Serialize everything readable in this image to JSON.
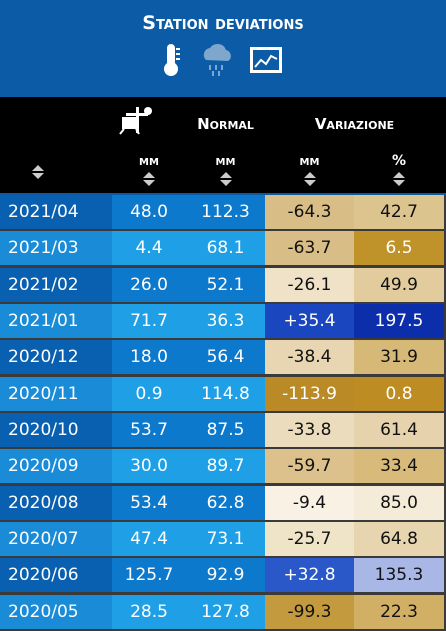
{
  "header": {
    "title": "Station deviations"
  },
  "table": {
    "columns": [
      "Normal",
      "Variazione"
    ],
    "units": [
      "mm",
      "mm",
      "mm",
      "%"
    ],
    "rows": [
      {
        "cells": [
          "2021/04",
          "48.0",
          "112.3",
          "-64.3",
          "42.7"
        ],
        "colors": [
          "#d9bd86",
          "#dcc48f"
        ]
      },
      {
        "cells": [
          "2021/03",
          "4.4",
          "68.1",
          "-63.7",
          "6.5"
        ],
        "colors": [
          "#d9bd86",
          "#c0922a"
        ]
      },
      {
        "cells": [
          "2021/02",
          "26.0",
          "52.1",
          "-26.1",
          "49.9"
        ],
        "colors": [
          "#efe2c6",
          "#e2cc9e"
        ]
      },
      {
        "cells": [
          "2021/01",
          "71.7",
          "36.3",
          "+35.4",
          "197.5"
        ],
        "colors": [
          "#1a47c0",
          "#0c2eab"
        ]
      },
      {
        "cells": [
          "2020/12",
          "18.0",
          "56.4",
          "-38.4",
          "31.9"
        ],
        "colors": [
          "#e8d6b2",
          "#d7b977"
        ]
      },
      {
        "cells": [
          "2020/11",
          "0.9",
          "114.8",
          "-113.9",
          "0.8"
        ],
        "colors": [
          "#b98a25",
          "#bd8d24"
        ]
      },
      {
        "cells": [
          "2020/10",
          "53.7",
          "87.5",
          "-33.8",
          "61.4"
        ],
        "colors": [
          "#eadcbc",
          "#e6d3ad"
        ]
      },
      {
        "cells": [
          "2020/09",
          "30.0",
          "89.7",
          "-59.7",
          "33.4"
        ],
        "colors": [
          "#dcc18c",
          "#d8bb7a"
        ]
      },
      {
        "cells": [
          "2020/08",
          "53.4",
          "62.8",
          "-9.4",
          "85.0"
        ],
        "colors": [
          "#f8f1e4",
          "#f4ebd8"
        ]
      },
      {
        "cells": [
          "2020/07",
          "47.4",
          "73.1",
          "-25.7",
          "64.8"
        ],
        "colors": [
          "#efe3c8",
          "#e7d5b0"
        ]
      },
      {
        "cells": [
          "2020/06",
          "125.7",
          "92.9",
          "+32.8",
          "135.3"
        ],
        "colors": [
          "#2a58c8",
          "#a9b7e6"
        ]
      },
      {
        "cells": [
          "2020/05",
          "28.5",
          "127.8",
          "-99.3",
          "22.3"
        ],
        "colors": [
          "#c49a3e",
          "#d1b066"
        ]
      }
    ]
  }
}
